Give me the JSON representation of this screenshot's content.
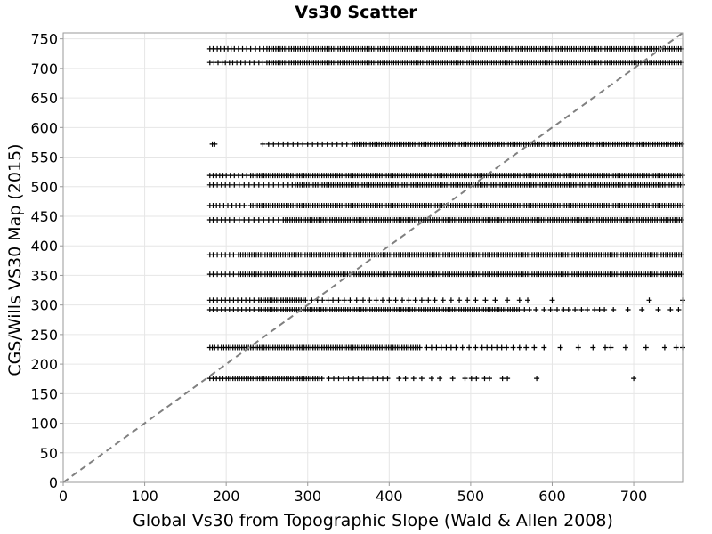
{
  "chart_data": {
    "type": "scatter",
    "title": "Vs30 Scatter",
    "xlabel": "Global Vs30 from Topographic Slope (Wald & Allen 2008)",
    "ylabel": "CGS/Wills VS30 Map (2015)",
    "xlim": [
      0,
      760
    ],
    "ylim": [
      0,
      760
    ],
    "xticks": [
      0,
      100,
      200,
      300,
      400,
      500,
      600,
      700
    ],
    "yticks": [
      0,
      50,
      100,
      150,
      200,
      250,
      300,
      350,
      400,
      450,
      500,
      550,
      600,
      650,
      700,
      750
    ],
    "grid": true,
    "reference_line": {
      "from": [
        0,
        0
      ],
      "to": [
        760,
        760
      ],
      "style": "dashed",
      "color": "#808080"
    },
    "marker": "+",
    "point_color": "#000000",
    "series": [
      {
        "bands": [
          {
            "y": 733,
            "dense_from": 250,
            "dense_to": 760,
            "sparse_x": [
              180,
              184,
              189,
              193,
              198,
              202,
              206,
              210,
              215,
              220,
              225,
              230,
              236,
              241,
              246
            ]
          },
          {
            "y": 710,
            "dense_from": 250,
            "dense_to": 760,
            "sparse_x": [
              180,
              185,
              190,
              195,
              199,
              204,
              208,
              213,
              218,
              223,
              229,
              234,
              240,
              245
            ]
          },
          {
            "y": 572,
            "dense_from": 355,
            "dense_to": 760,
            "sparse_x": [
              183,
              186,
              245,
              252,
              258,
              264,
              270,
              276,
              282,
              288,
              294,
              300,
              306,
              312,
              318,
              324,
              330,
              336,
              342,
              348
            ]
          },
          {
            "y": 519,
            "dense_from": 230,
            "dense_to": 760,
            "sparse_x": [
              180,
              184,
              188,
              192,
              196,
              200,
              205,
              210,
              215,
              220,
              225
            ]
          },
          {
            "y": 503,
            "dense_from": 285,
            "dense_to": 760,
            "sparse_x": [
              180,
              184,
              189,
              194,
              199,
              204,
              210,
              216,
              222,
              228,
              234,
              240,
              246,
              252,
              258,
              264,
              270,
              276,
              281
            ]
          },
          {
            "y": 468,
            "dense_from": 230,
            "dense_to": 760,
            "sparse_x": [
              180,
              184,
              188,
              192,
              197,
              202,
              207,
              212,
              217,
              222
            ]
          },
          {
            "y": 444,
            "dense_from": 270,
            "dense_to": 760,
            "sparse_x": [
              180,
              184,
              189,
              194,
              199,
              204,
              210,
              216,
              222,
              228,
              234,
              240,
              246,
              252,
              258,
              264
            ]
          },
          {
            "y": 385,
            "dense_from": 215,
            "dense_to": 760,
            "sparse_x": [
              180,
              184,
              189,
              194,
              199,
              204,
              209
            ]
          },
          {
            "y": 352,
            "dense_from": 215,
            "dense_to": 760,
            "sparse_x": [
              180,
              184,
              189,
              194,
              199,
              204,
              209
            ]
          },
          {
            "y": 308,
            "dense_from": 240,
            "dense_to": 300,
            "sparse_x": [
              180,
              184,
              189,
              194,
              199,
              204,
              209,
              214,
              219,
              224,
              229,
              234,
              305,
              312,
              318,
              325,
              331,
              338,
              345,
              352,
              360,
              368,
              376,
              384,
              392,
              400,
              408,
              416,
              424,
              432,
              440,
              448,
              456,
              466,
              476,
              486,
              496,
              506,
              518,
              530,
              545,
              560,
              570,
              600,
              719,
              760
            ]
          },
          {
            "y": 292,
            "dense_from": 240,
            "dense_to": 560,
            "sparse_x": [
              180,
              184,
              189,
              194,
              199,
              204,
              209,
              214,
              219,
              224,
              229,
              234,
              566,
              572,
              580,
              590,
              598,
              606,
              614,
              620,
              628,
              636,
              643,
              652,
              658,
              664,
              675,
              693,
              710,
              730,
              745,
              755
            ]
          },
          {
            "y": 228,
            "dense_from": 200,
            "dense_to": 440,
            "sparse_x": [
              180,
              183,
              186,
              190,
              194,
              197,
              446,
              452,
              458,
              464,
              470,
              476,
              482,
              490,
              498,
              506,
              514,
              520,
              526,
              532,
              538,
              544,
              552,
              560,
              568,
              578,
              590,
              610,
              632,
              650,
              665,
              672,
              690,
              715,
              738,
              752,
              760
            ]
          },
          {
            "y": 176,
            "dense_from": 200,
            "dense_to": 320,
            "sparse_x": [
              180,
              184,
              188,
              192,
              196,
              326,
              332,
              338,
              344,
              350,
              356,
              362,
              368,
              374,
              380,
              386,
              392,
              398,
              412,
              420,
              430,
              440,
              452,
              462,
              478,
              493,
              501,
              507,
              517,
              523,
              539,
              545,
              581,
              700
            ]
          }
        ]
      }
    ]
  }
}
